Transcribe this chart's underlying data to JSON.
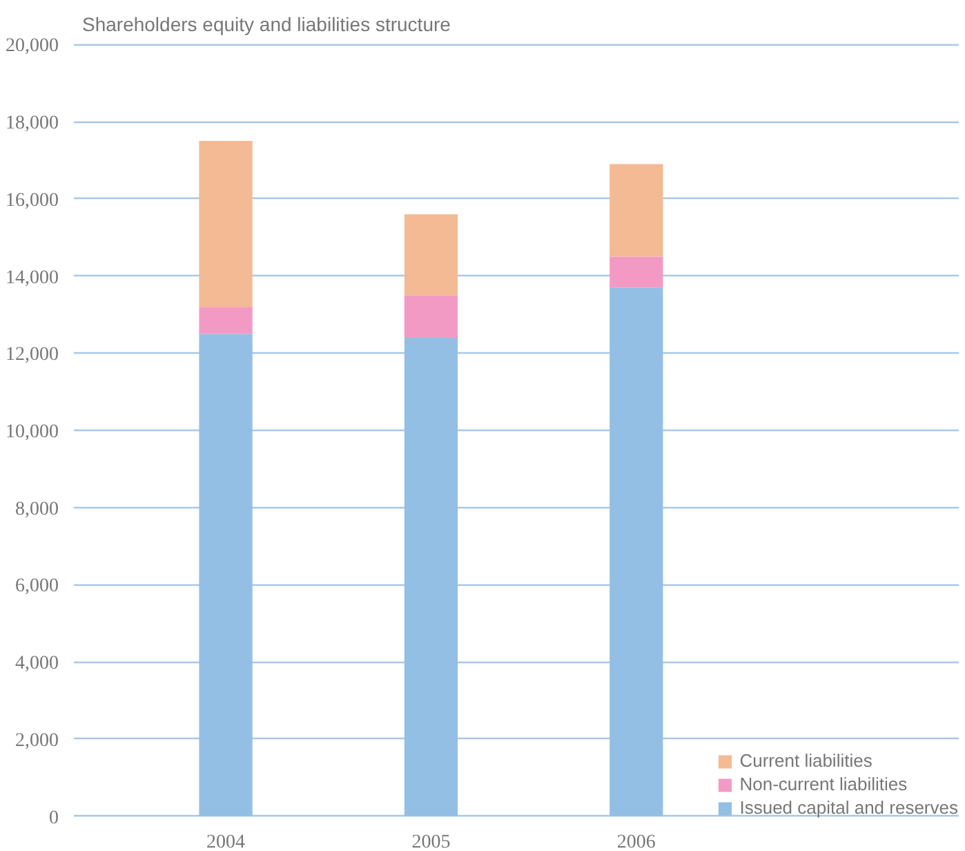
{
  "chart_data": {
    "type": "bar",
    "title": "Shareholders equity and liabilities structure",
    "categories": [
      "2004",
      "2005",
      "2006"
    ],
    "stacked": true,
    "series": [
      {
        "name": "Issued capital and reserves",
        "color": "#94bfe5",
        "values": [
          12500,
          12400,
          13700
        ]
      },
      {
        "name": "Non-current liabilities",
        "color": "#f39ac4",
        "values": [
          700,
          1100,
          800
        ]
      },
      {
        "name": "Current liabilities",
        "color": "#f3ba94",
        "values": [
          4300,
          2100,
          2400
        ]
      }
    ],
    "ylim": [
      0,
      20000
    ],
    "yticks": [
      {
        "value": 0,
        "label": "0"
      },
      {
        "value": 2000,
        "label": "2,000"
      },
      {
        "value": 4000,
        "label": "4,000"
      },
      {
        "value": 6000,
        "label": "6,000"
      },
      {
        "value": 8000,
        "label": "8,000"
      },
      {
        "value": 10000,
        "label": "10,000"
      },
      {
        "value": 12000,
        "label": "12,000"
      },
      {
        "value": 14000,
        "label": "14,000"
      },
      {
        "value": 16000,
        "label": "16,000"
      },
      {
        "value": 18000,
        "label": "18,000"
      },
      {
        "value": 20000,
        "label": "20,000"
      }
    ],
    "grid": "y",
    "legend": "bottom right"
  }
}
